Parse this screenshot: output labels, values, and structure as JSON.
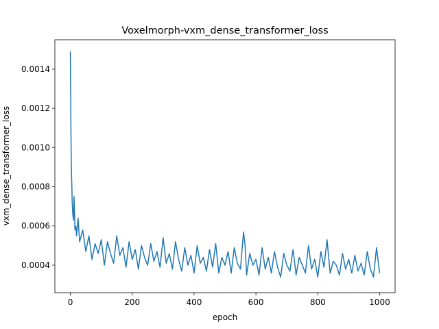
{
  "chart_data": {
    "type": "line",
    "title": "Voxelmorph-vxm_dense_transformer_loss",
    "xlabel": "epoch",
    "ylabel": "vxm_dense_transformer_loss",
    "xlim": [
      -50,
      1050
    ],
    "ylim": [
      0.00026,
      0.00155
    ],
    "xticks": [
      0,
      200,
      400,
      600,
      800,
      1000
    ],
    "xtick_labels": [
      "0",
      "200",
      "400",
      "600",
      "800",
      "1000"
    ],
    "yticks": [
      0.0004,
      0.0006,
      0.0008,
      0.001,
      0.0012,
      0.0014
    ],
    "ytick_labels": [
      "0.0004",
      "0.0006",
      "0.0008",
      "0.0010",
      "0.0012",
      "0.0014"
    ],
    "grid": false,
    "series": [
      {
        "name": "vxm_dense_transformer_loss",
        "color": "#1f77b4",
        "x": [
          0,
          1,
          2,
          3,
          4,
          5,
          6,
          8,
          10,
          12,
          15,
          18,
          20,
          25,
          30,
          40,
          50,
          60,
          70,
          80,
          90,
          100,
          110,
          120,
          130,
          140,
          150,
          160,
          170,
          180,
          190,
          200,
          210,
          220,
          230,
          240,
          250,
          260,
          270,
          280,
          290,
          300,
          310,
          320,
          330,
          340,
          350,
          360,
          370,
          380,
          390,
          400,
          410,
          420,
          430,
          440,
          450,
          460,
          470,
          480,
          490,
          500,
          510,
          520,
          530,
          540,
          550,
          560,
          565,
          570,
          580,
          590,
          600,
          610,
          620,
          630,
          640,
          650,
          660,
          670,
          680,
          690,
          700,
          710,
          720,
          730,
          740,
          750,
          760,
          770,
          780,
          790,
          800,
          810,
          820,
          830,
          840,
          850,
          860,
          870,
          880,
          890,
          900,
          910,
          920,
          930,
          940,
          950,
          960,
          970,
          980,
          990,
          1000
        ],
        "y": [
          0.00149,
          0.0013,
          0.00108,
          0.00092,
          0.00085,
          0.0008,
          0.00072,
          0.00066,
          0.00063,
          0.00075,
          0.00058,
          0.0006,
          0.00055,
          0.00064,
          0.00052,
          0.00058,
          0.00047,
          0.00055,
          0.00043,
          0.00051,
          0.00046,
          0.00053,
          0.0004,
          0.00052,
          0.00046,
          0.00041,
          0.00055,
          0.00045,
          0.00049,
          0.00039,
          0.00052,
          0.00043,
          0.00048,
          0.00038,
          0.0005,
          0.00044,
          0.0004,
          0.00051,
          0.00042,
          0.00047,
          0.00039,
          0.00054,
          0.00041,
          0.00046,
          0.00038,
          0.00052,
          0.00043,
          0.00037,
          0.00049,
          0.0004,
          0.00045,
          0.00036,
          0.0005,
          0.00041,
          0.00044,
          0.00037,
          0.00048,
          0.00039,
          0.00051,
          0.00036,
          0.00044,
          0.0004,
          0.00047,
          0.00036,
          0.00049,
          0.00041,
          0.00038,
          0.00057,
          0.0005,
          0.00035,
          0.00046,
          0.0004,
          0.00043,
          0.00035,
          0.00049,
          0.00038,
          0.00044,
          0.00036,
          0.00047,
          0.00039,
          0.00034,
          0.00046,
          0.0004,
          0.00037,
          0.00048,
          0.00035,
          0.00044,
          0.0004,
          0.00036,
          0.0005,
          0.00038,
          0.00043,
          0.00034,
          0.00047,
          0.00039,
          0.00053,
          0.00036,
          0.00042,
          0.0004,
          0.00035,
          0.00046,
          0.00038,
          0.00043,
          0.00036,
          0.00045,
          0.00037,
          0.00041,
          0.00035,
          0.00047,
          0.00038,
          0.00034,
          0.00049,
          0.00036
        ]
      }
    ]
  }
}
